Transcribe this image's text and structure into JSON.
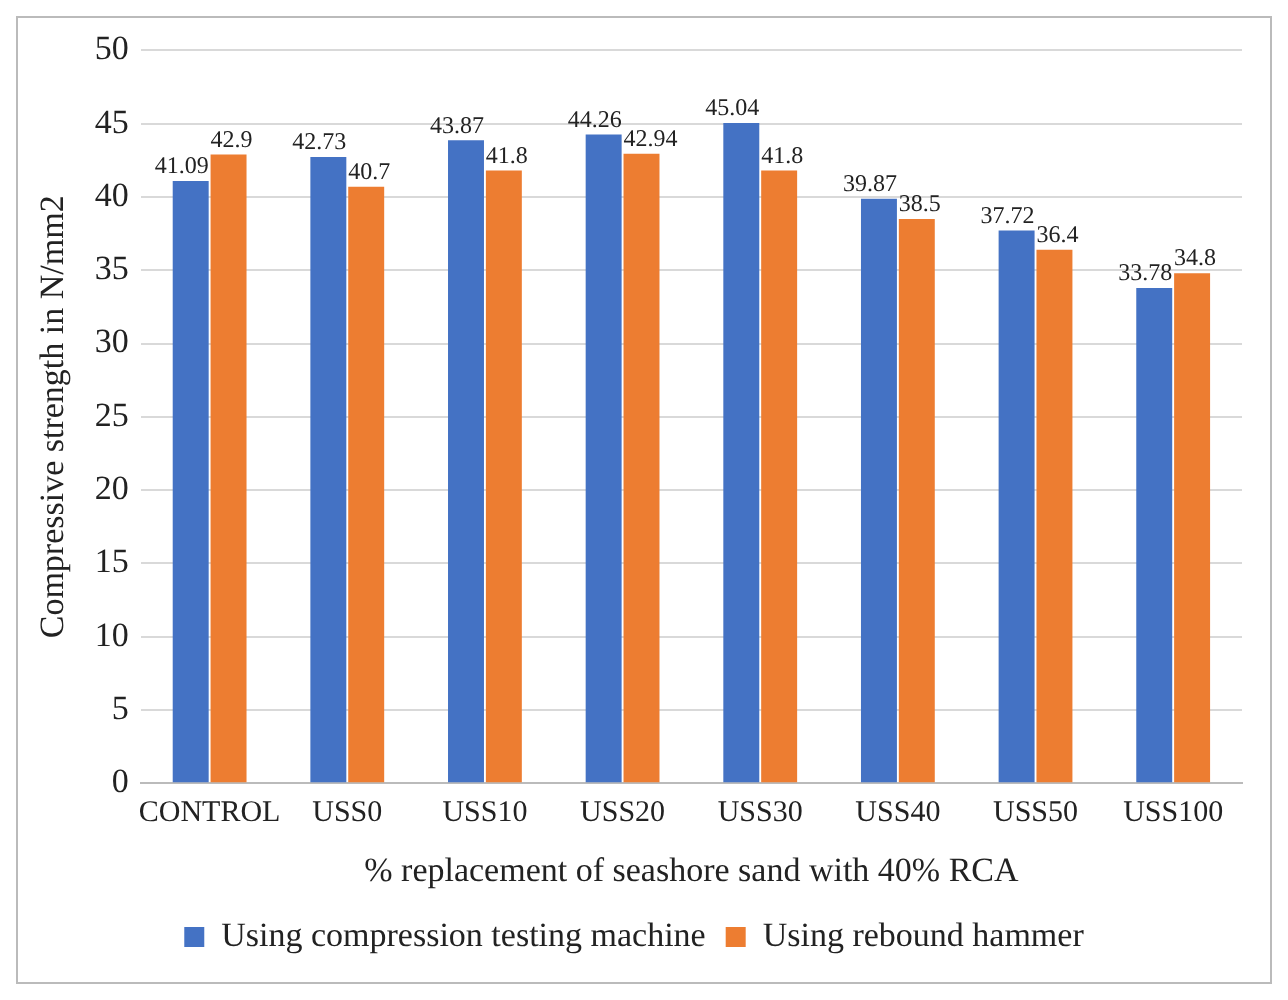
{
  "chart_data": {
    "type": "bar",
    "xlabel": "% replacement of seashore sand with 40% RCA",
    "ylabel": "Compressive strength in N/mm2",
    "categories": [
      "CONTROL",
      "USS0",
      "USS10",
      "USS20",
      "USS30",
      "USS40",
      "USS50",
      "USS100"
    ],
    "series": [
      {
        "name": "Using compression testing machine",
        "color": "#4472c4",
        "values": [
          41.09,
          42.73,
          43.87,
          44.26,
          45.04,
          39.87,
          37.72,
          33.78
        ]
      },
      {
        "name": "Using rebound hammer",
        "color": "#ed7d31",
        "values": [
          42.9,
          40.7,
          41.8,
          42.94,
          41.8,
          38.5,
          36.4,
          34.8
        ]
      }
    ],
    "ylim": [
      0,
      50
    ],
    "yticks": [
      0,
      5,
      10,
      15,
      20,
      25,
      30,
      35,
      40,
      45,
      50
    ],
    "grid": "y",
    "legend": "bottom",
    "data_labels": true
  }
}
